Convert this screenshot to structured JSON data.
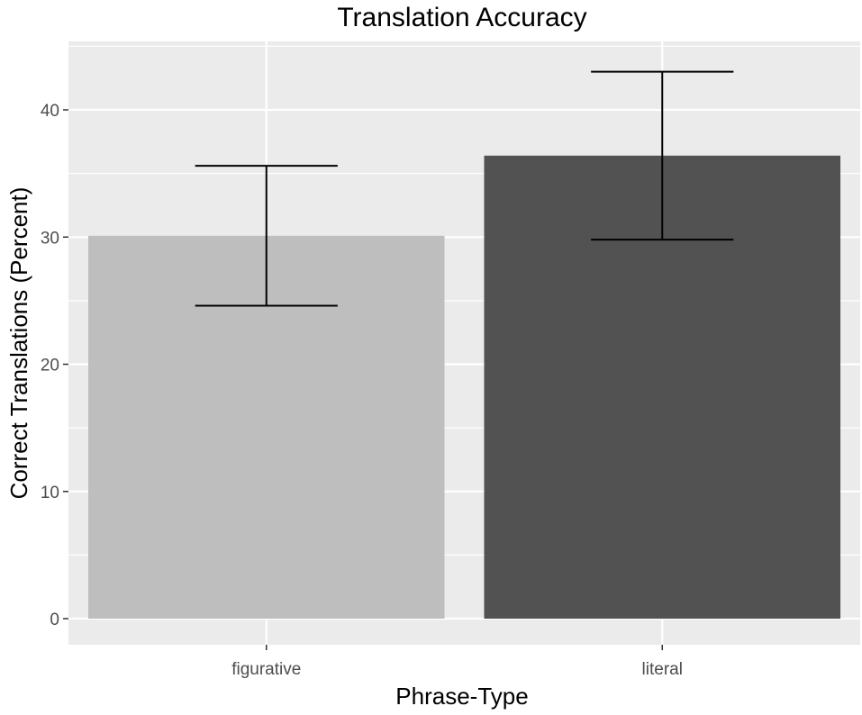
{
  "chart_data": {
    "type": "bar",
    "title": "Translation Accuracy",
    "xlabel": "Phrase-Type",
    "ylabel": "Correct Translations (Percent)",
    "categories": [
      "figurative",
      "literal"
    ],
    "values": [
      30.1,
      36.4
    ],
    "error_bars": [
      {
        "category": "figurative",
        "low": 24.6,
        "high": 35.6
      },
      {
        "category": "literal",
        "low": 29.8,
        "high": 43.0
      }
    ],
    "ylim": [
      0,
      45.5
    ],
    "yticks": [
      0,
      10,
      20,
      30,
      40
    ],
    "grid": true,
    "legend": "none",
    "colors": {
      "figurative": "#bebebe",
      "literal": "#525252",
      "panel": "#ebebeb",
      "gridline": "#ffffff",
      "error_bar": "#000000"
    }
  }
}
